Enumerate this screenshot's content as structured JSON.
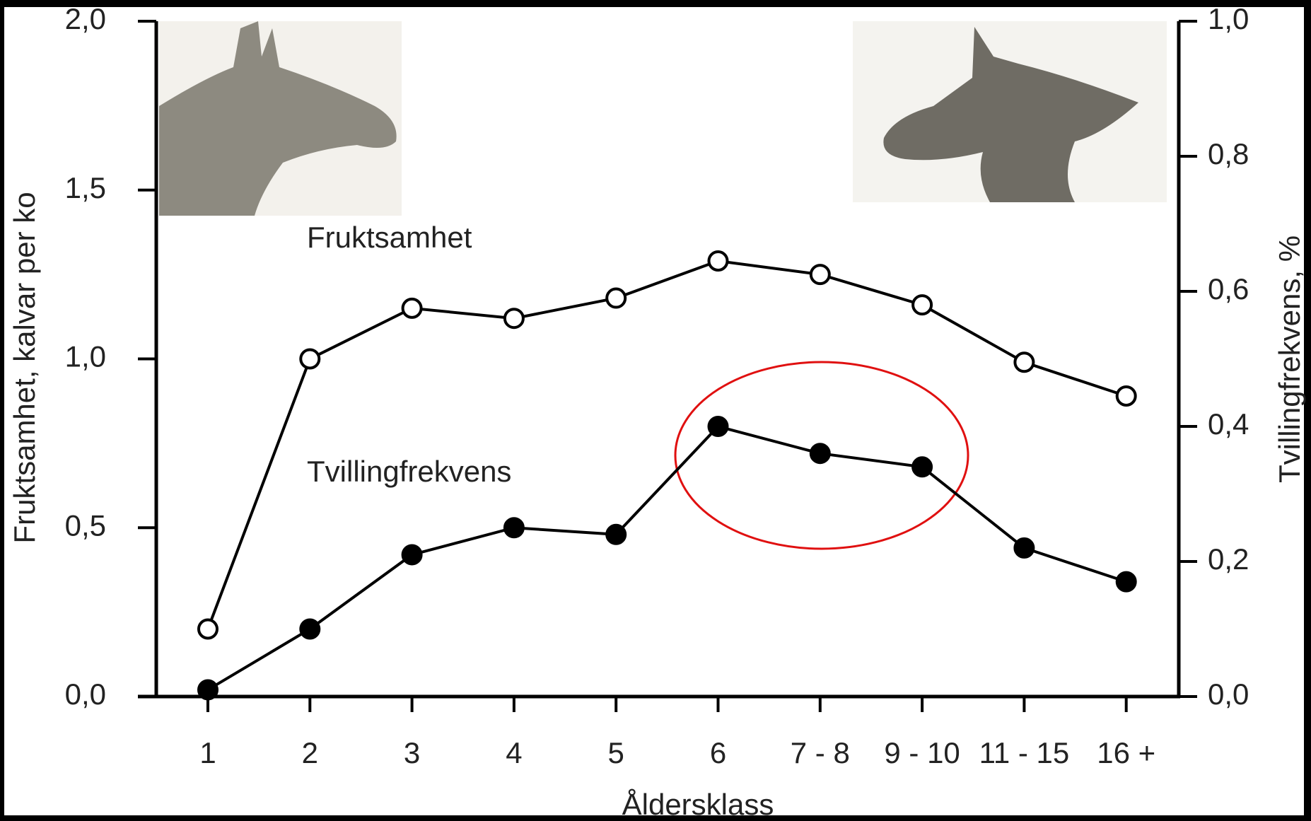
{
  "chart_data": {
    "type": "line",
    "categories": [
      "1",
      "2",
      "3",
      "4",
      "5",
      "6",
      "7 - 8",
      "9 - 10",
      "11 - 15",
      "16 +"
    ],
    "x_label": "Åldersklass",
    "y_label": "Fruktsamhet, kalvar per ko",
    "y2_label": "Tvillingfrekvens, %",
    "annotations": [
      "Fruktsamhet",
      "Tvillingfrekvens"
    ],
    "ylim": [
      0,
      2
    ],
    "yticks": [
      {
        "value": 0,
        "label": "0,0"
      },
      {
        "value": 0.5,
        "label": "0,5"
      },
      {
        "value": 1,
        "label": "1,0"
      },
      {
        "value": 1.5,
        "label": "1,5"
      },
      {
        "value": 2,
        "label": "2,0"
      }
    ],
    "y2lim": [
      0,
      1
    ],
    "y2ticks": [
      {
        "value": 0,
        "label": "0,0"
      },
      {
        "value": 0.2,
        "label": "0,2"
      },
      {
        "value": 0.4,
        "label": "0,4"
      },
      {
        "value": 0.6,
        "label": "0,6"
      },
      {
        "value": 0.8,
        "label": "0,8"
      },
      {
        "value": 1,
        "label": "1,0"
      }
    ],
    "series": [
      {
        "name": "Fruktsamhet",
        "color": "#000000",
        "marker": "open",
        "values": [
          0.2,
          1.0,
          1.15,
          1.12,
          1.18,
          1.29,
          1.25,
          1.16,
          0.99,
          0.89
        ]
      },
      {
        "name": "Tvillingfrekvens",
        "color": "#000000",
        "marker": "filled",
        "axis": "y2",
        "values": [
          0.01,
          0.1,
          0.21,
          0.25,
          0.24,
          0.4,
          0.36,
          0.34,
          0.22,
          0.17
        ]
      }
    ]
  }
}
